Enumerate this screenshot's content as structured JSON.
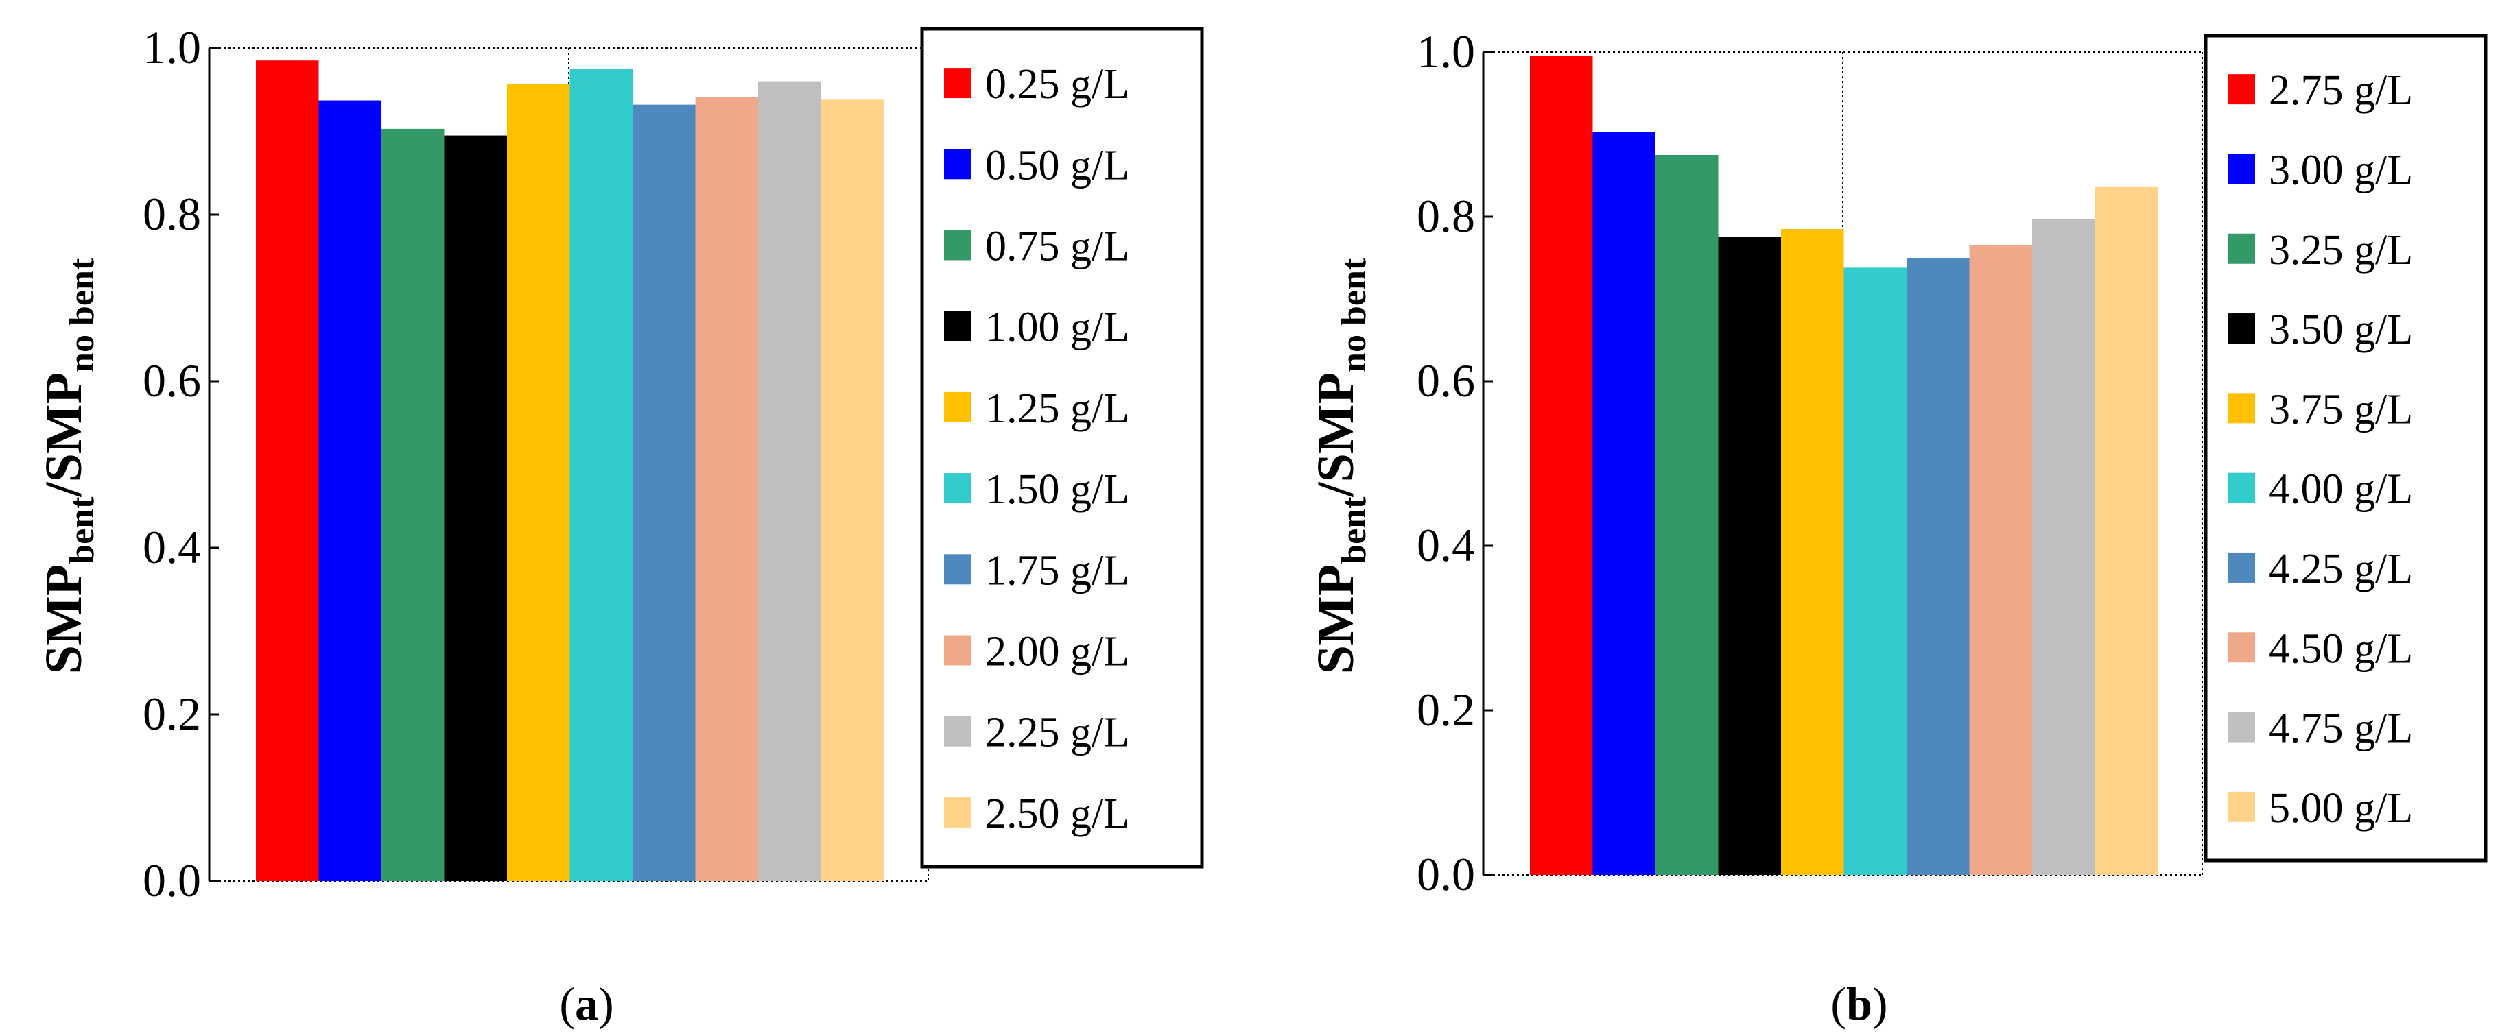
{
  "ylabel": {
    "main1": "SMP",
    "sub1": "bent",
    "slash": "/",
    "main2": "SMP",
    "sub2": "no bent"
  },
  "chart_data": [
    {
      "type": "bar",
      "panel_label": {
        "open": "(",
        "letter": "a",
        "close": ")"
      },
      "categories": [
        "0.25 g/L",
        "0.50 g/L",
        "0.75 g/L",
        "1.00 g/L",
        "1.25 g/L",
        "1.50 g/L",
        "1.75 g/L",
        "2.00 g/L",
        "2.25 g/L",
        "2.50 g/L"
      ],
      "values": [
        0.985,
        0.937,
        0.903,
        0.895,
        0.957,
        0.975,
        0.932,
        0.941,
        0.96,
        0.938
      ],
      "colors": [
        "#ff0000",
        "#0000ff",
        "#339966",
        "#000000",
        "#ffc000",
        "#33cccc",
        "#4f88bd",
        "#f0a88a",
        "#bfbfbf",
        "#ffd38a"
      ],
      "yticks": [
        "0.0",
        "0.2",
        "0.4",
        "0.6",
        "0.8",
        "1.0"
      ],
      "ylim": [
        0,
        1.0
      ],
      "ylabel": "SMPbent/SMPno bent",
      "legend_position": "right"
    },
    {
      "type": "bar",
      "panel_label": {
        "open": "(",
        "letter": "b",
        "close": ")"
      },
      "categories": [
        "2.75 g/L",
        "3.00 g/L",
        "3.25 g/L",
        "3.50 g/L",
        "3.75 g/L",
        "4.00 g/L",
        "4.25 g/L",
        "4.50 g/L",
        "4.75 g/L",
        "5.00 g/L"
      ],
      "values": [
        0.995,
        0.903,
        0.875,
        0.775,
        0.785,
        0.738,
        0.75,
        0.765,
        0.797,
        0.836
      ],
      "colors": [
        "#ff0000",
        "#0000ff",
        "#339966",
        "#000000",
        "#ffc000",
        "#33cccc",
        "#4f88bd",
        "#f0a88a",
        "#bfbfbf",
        "#ffd38a"
      ],
      "yticks": [
        "0.0",
        "0.2",
        "0.4",
        "0.6",
        "0.8",
        "1.0"
      ],
      "ylim": [
        0,
        1.0
      ],
      "ylabel": "SMPbent/SMPno bent",
      "legend_position": "right"
    }
  ]
}
